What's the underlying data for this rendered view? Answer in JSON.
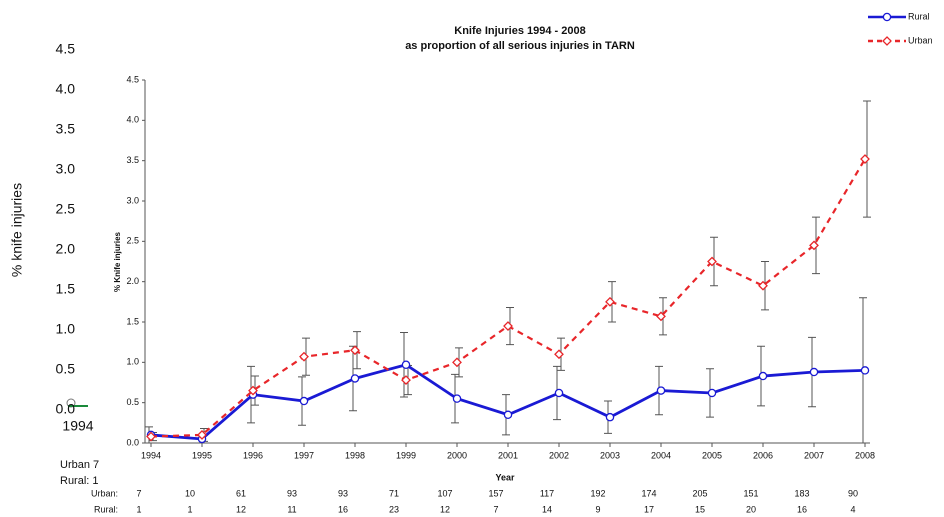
{
  "chart_data": {
    "type": "line",
    "title": "Knife Injuries 1994 - 2008",
    "subtitle": "as proportion of all serious injuries in TARN",
    "x_label": "Year",
    "y_label": "% Knife injuries",
    "categories": [
      "1994",
      "1995",
      "1996",
      "1997",
      "1998",
      "1999",
      "2000",
      "2001",
      "2002",
      "2003",
      "2004",
      "2005",
      "2006",
      "2007",
      "2008"
    ],
    "series": [
      {
        "name": "Rural",
        "color": "#1a1ad4",
        "style": "solid",
        "marker": "circle",
        "values": [
          0.1,
          0.05,
          0.6,
          0.52,
          0.8,
          0.97,
          0.55,
          0.35,
          0.62,
          0.32,
          0.65,
          0.62,
          0.83,
          0.88,
          0.9
        ],
        "errors": [
          0.1,
          0.05,
          0.35,
          0.3,
          0.4,
          0.4,
          0.3,
          0.25,
          0.33,
          0.2,
          0.3,
          0.3,
          0.37,
          0.43,
          0.9
        ]
      },
      {
        "name": "Urban",
        "color": "#e8262a",
        "style": "dashed",
        "marker": "diamond",
        "values": [
          0.08,
          0.1,
          0.65,
          1.07,
          1.15,
          0.78,
          1.0,
          1.45,
          1.1,
          1.75,
          1.57,
          2.25,
          1.95,
          2.45,
          3.52
        ],
        "errors": [
          0.05,
          0.08,
          0.18,
          0.23,
          0.23,
          0.18,
          0.18,
          0.23,
          0.2,
          0.25,
          0.23,
          0.3,
          0.3,
          0.35,
          0.72
        ]
      }
    ],
    "ylim": [
      0,
      4.5
    ],
    "yticks": [
      {
        "value": 0,
        "label": "0.0"
      },
      {
        "value": 0.5,
        "label": "0.5"
      },
      {
        "value": 1,
        "label": "1.0"
      },
      {
        "value": 1.5,
        "label": "1.5"
      },
      {
        "value": 2,
        "label": "2.0"
      },
      {
        "value": 2.5,
        "label": "2.5"
      },
      {
        "value": 3,
        "label": "3.0"
      },
      {
        "value": 3.5,
        "label": "3.5"
      },
      {
        "value": 4,
        "label": "4.0"
      },
      {
        "value": 4.5,
        "label": "4.5"
      }
    ],
    "legend": "top-right",
    "counts": [
      {
        "label": "Urban:",
        "values": [
          7,
          10,
          61,
          93,
          93,
          71,
          107,
          157,
          117,
          192,
          174,
          205,
          151,
          183,
          90
        ]
      },
      {
        "label": "Rural:",
        "values": [
          1,
          1,
          12,
          11,
          16,
          23,
          12,
          7,
          14,
          9,
          17,
          15,
          20,
          16,
          4
        ]
      }
    ],
    "overlay": {
      "y_label": "% knife injuries",
      "ylim": [
        0,
        4.5
      ],
      "yticks": [
        {
          "value": 0,
          "label": "0.0"
        },
        {
          "value": 0.5,
          "label": "0.5"
        },
        {
          "value": 1,
          "label": "1.0"
        },
        {
          "value": 1.5,
          "label": "1.5"
        },
        {
          "value": 2,
          "label": "2.0"
        },
        {
          "value": 2.5,
          "label": "2.5"
        },
        {
          "value": 3,
          "label": "3.0"
        },
        {
          "value": 3.5,
          "label": "3.5"
        },
        {
          "value": 4,
          "label": "4.0"
        },
        {
          "value": 4.5,
          "label": "4.5"
        }
      ],
      "x_label": "1994",
      "notes": [
        "Urban 7",
        "Rural:  1"
      ]
    }
  }
}
